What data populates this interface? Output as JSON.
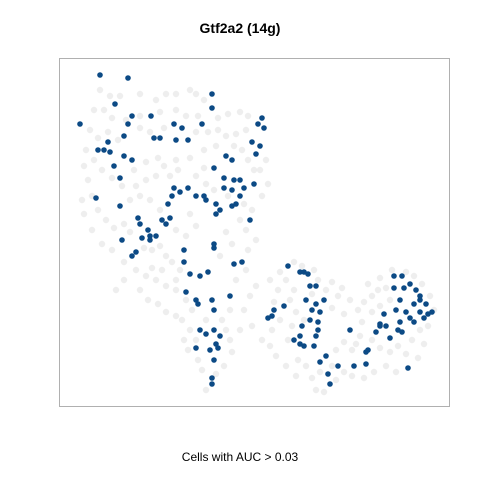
{
  "title": "Gtf2a2 (14g)",
  "caption": "Cells with AUC > 0.03",
  "colors": {
    "highlight": "#0c4a85",
    "background_cells": "#e8e8e8",
    "frame": "#b0b0b0"
  },
  "chart_data": {
    "type": "scatter",
    "title": "Gtf2a2 (14g)",
    "xlabel": "Cells with AUC > 0.03",
    "ylabel": "",
    "grid": false,
    "legend": "none",
    "series": [
      {
        "color": "#0c4a85",
        "points": [
          [
            100,
            75
          ],
          [
            128,
            78
          ],
          [
            80,
            124
          ],
          [
            115,
            104
          ],
          [
            132,
            116
          ],
          [
            128,
            124
          ],
          [
            151,
            116
          ],
          [
            174,
            124
          ],
          [
            182,
            128
          ],
          [
            202,
            124
          ],
          [
            212,
            94
          ],
          [
            212,
            108
          ],
          [
            188,
            140
          ],
          [
            258,
            124
          ],
          [
            262,
            118
          ],
          [
            264,
            128
          ],
          [
            252,
            142
          ],
          [
            260,
            146
          ],
          [
            226,
            156
          ],
          [
            232,
            160
          ],
          [
            214,
            168
          ],
          [
            224,
            178
          ],
          [
            224,
            188
          ],
          [
            234,
            180
          ],
          [
            240,
            180
          ],
          [
            254,
            184
          ],
          [
            240,
            196
          ],
          [
            236,
            204
          ],
          [
            232,
            206
          ],
          [
            216,
            204
          ],
          [
            220,
            210
          ],
          [
            216,
            214
          ],
          [
            206,
            200
          ],
          [
            204,
            196
          ],
          [
            196,
            196
          ],
          [
            188,
            188
          ],
          [
            174,
            188
          ],
          [
            172,
            196
          ],
          [
            168,
            204
          ],
          [
            170,
            218
          ],
          [
            166,
            224
          ],
          [
            162,
            220
          ],
          [
            156,
            236
          ],
          [
            150,
            236
          ],
          [
            142,
            238
          ],
          [
            140,
            224
          ],
          [
            138,
            218
          ],
          [
            148,
            230
          ],
          [
            122,
            240
          ],
          [
            132,
            256
          ],
          [
            136,
            252
          ],
          [
            120,
            206
          ],
          [
            120,
            178
          ],
          [
            114,
            166
          ],
          [
            110,
            152
          ],
          [
            124,
            156
          ],
          [
            132,
            160
          ],
          [
            104,
            150
          ],
          [
            98,
            150
          ],
          [
            154,
            138
          ],
          [
            160,
            138
          ],
          [
            124,
            136
          ],
          [
            108,
            142
          ],
          [
            96,
            198
          ],
          [
            184,
            250
          ],
          [
            184,
            262
          ],
          [
            190,
            274
          ],
          [
            186,
            292
          ],
          [
            214,
            244
          ],
          [
            214,
            248
          ],
          [
            200,
            276
          ],
          [
            208,
            272
          ],
          [
            234,
            264
          ],
          [
            242,
            262
          ],
          [
            198,
            304
          ],
          [
            212,
            300
          ],
          [
            214,
            310
          ],
          [
            206,
            334
          ],
          [
            214,
            330
          ],
          [
            216,
            344
          ],
          [
            218,
            348
          ],
          [
            210,
            350
          ],
          [
            220,
            336
          ],
          [
            196,
            348
          ],
          [
            214,
            360
          ],
          [
            212,
            378
          ],
          [
            212,
            384
          ],
          [
            268,
            318
          ],
          [
            274,
            310
          ],
          [
            284,
            306
          ],
          [
            288,
            266
          ],
          [
            300,
            272
          ],
          [
            304,
            272
          ],
          [
            308,
            274
          ],
          [
            310,
            286
          ],
          [
            316,
            286
          ],
          [
            306,
            300
          ],
          [
            316,
            304
          ],
          [
            312,
            310
          ],
          [
            320,
            312
          ],
          [
            324,
            300
          ],
          [
            318,
            322
          ],
          [
            316,
            336
          ],
          [
            314,
            346
          ],
          [
            302,
            326
          ],
          [
            300,
            336
          ],
          [
            294,
            340
          ],
          [
            300,
            344
          ],
          [
            304,
            346
          ],
          [
            326,
            356
          ],
          [
            320,
            362
          ],
          [
            328,
            374
          ],
          [
            330,
            384
          ],
          [
            350,
            330
          ],
          [
            366,
            352
          ],
          [
            366,
            364
          ],
          [
            338,
            366
          ],
          [
            354,
            366
          ],
          [
            376,
            332
          ],
          [
            380,
            326
          ],
          [
            384,
            314
          ],
          [
            394,
            276
          ],
          [
            402,
            276
          ],
          [
            394,
            288
          ],
          [
            400,
            300
          ],
          [
            404,
            288
          ],
          [
            410,
            284
          ],
          [
            416,
            290
          ],
          [
            396,
            310
          ],
          [
            406,
            312
          ],
          [
            410,
            318
          ],
          [
            414,
            322
          ],
          [
            420,
            312
          ],
          [
            420,
            300
          ],
          [
            426,
            304
          ],
          [
            424,
            318
          ],
          [
            432,
            312
          ],
          [
            400,
            322
          ],
          [
            402,
            332
          ],
          [
            390,
            338
          ],
          [
            408,
            368
          ],
          [
            380,
            324
          ],
          [
            318,
            330
          ],
          [
            272,
            316
          ],
          [
            230,
            296
          ],
          [
            244,
            188
          ],
          [
            150,
            240
          ],
          [
            180,
            192
          ],
          [
            250,
            220
          ],
          [
            196,
            300
          ],
          [
            200,
            330
          ],
          [
            310,
            320
          ],
          [
            232,
            190
          ],
          [
            176,
            140
          ],
          [
            256,
            154
          ],
          [
            368,
            350
          ],
          [
            414,
            304
          ],
          [
            420,
            296
          ],
          [
            428,
            314
          ],
          [
            386,
            326
          ],
          [
            398,
            330
          ]
        ]
      }
    ],
    "background_points": [
      [
        100,
        90
      ],
      [
        110,
        96
      ],
      [
        120,
        96
      ],
      [
        140,
        94
      ],
      [
        156,
        100
      ],
      [
        166,
        94
      ],
      [
        176,
        94
      ],
      [
        190,
        90
      ],
      [
        196,
        94
      ],
      [
        204,
        100
      ],
      [
        94,
        110
      ],
      [
        104,
        110
      ],
      [
        112,
        118
      ],
      [
        126,
        120
      ],
      [
        140,
        116
      ],
      [
        160,
        112
      ],
      [
        176,
        110
      ],
      [
        186,
        116
      ],
      [
        198,
        116
      ],
      [
        218,
        118
      ],
      [
        228,
        114
      ],
      [
        240,
        112
      ],
      [
        248,
        116
      ],
      [
        90,
        130
      ],
      [
        98,
        138
      ],
      [
        108,
        132
      ],
      [
        140,
        128
      ],
      [
        150,
        132
      ],
      [
        164,
        128
      ],
      [
        196,
        132
      ],
      [
        208,
        132
      ],
      [
        218,
        130
      ],
      [
        226,
        136
      ],
      [
        236,
        134
      ],
      [
        246,
        130
      ],
      [
        94,
        160
      ],
      [
        102,
        170
      ],
      [
        112,
        178
      ],
      [
        122,
        186
      ],
      [
        134,
        170
      ],
      [
        146,
        162
      ],
      [
        158,
        158
      ],
      [
        164,
        166
      ],
      [
        176,
        160
      ],
      [
        190,
        158
      ],
      [
        204,
        150
      ],
      [
        216,
        146
      ],
      [
        234,
        146
      ],
      [
        242,
        150
      ],
      [
        248,
        160
      ],
      [
        254,
        170
      ],
      [
        88,
        180
      ],
      [
        92,
        196
      ],
      [
        98,
        210
      ],
      [
        106,
        220
      ],
      [
        114,
        228
      ],
      [
        124,
        224
      ],
      [
        130,
        232
      ],
      [
        144,
        248
      ],
      [
        152,
        250
      ],
      [
        160,
        246
      ],
      [
        166,
        256
      ],
      [
        172,
        262
      ],
      [
        180,
        270
      ],
      [
        92,
        230
      ],
      [
        102,
        244
      ],
      [
        112,
        250
      ],
      [
        124,
        262
      ],
      [
        136,
        270
      ],
      [
        146,
        276
      ],
      [
        156,
        280
      ],
      [
        166,
        286
      ],
      [
        176,
        290
      ],
      [
        186,
        300
      ],
      [
        192,
        310
      ],
      [
        182,
        320
      ],
      [
        190,
        330
      ],
      [
        196,
        340
      ],
      [
        198,
        360
      ],
      [
        202,
        370
      ],
      [
        206,
        390
      ],
      [
        222,
        320
      ],
      [
        226,
        330
      ],
      [
        230,
        310
      ],
      [
        236,
        280
      ],
      [
        246,
        270
      ],
      [
        248,
        250
      ],
      [
        256,
        240
      ],
      [
        246,
        230
      ],
      [
        252,
        210
      ],
      [
        262,
        196
      ],
      [
        268,
        184
      ],
      [
        260,
        170
      ],
      [
        266,
        160
      ],
      [
        226,
        232
      ],
      [
        232,
        244
      ],
      [
        220,
        256
      ],
      [
        196,
        226
      ],
      [
        190,
        214
      ],
      [
        186,
        236
      ],
      [
        176,
        230
      ],
      [
        160,
        210
      ],
      [
        150,
        200
      ],
      [
        140,
        196
      ],
      [
        130,
        200
      ],
      [
        136,
        186
      ],
      [
        146,
        180
      ],
      [
        156,
        176
      ],
      [
        170,
        176
      ],
      [
        178,
        170
      ],
      [
        196,
        176
      ],
      [
        204,
        168
      ],
      [
        206,
        184
      ],
      [
        214,
        190
      ],
      [
        228,
        196
      ],
      [
        244,
        204
      ],
      [
        240,
        220
      ],
      [
        270,
        280
      ],
      [
        278,
        290
      ],
      [
        286,
        280
      ],
      [
        294,
        290
      ],
      [
        290,
        300
      ],
      [
        280,
        320
      ],
      [
        272,
        330
      ],
      [
        262,
        340
      ],
      [
        252,
        326
      ],
      [
        244,
        310
      ],
      [
        250,
        296
      ],
      [
        256,
        286
      ],
      [
        296,
        312
      ],
      [
        304,
        320
      ],
      [
        292,
        326
      ],
      [
        288,
        340
      ],
      [
        298,
        360
      ],
      [
        306,
        366
      ],
      [
        312,
        378
      ],
      [
        320,
        372
      ],
      [
        332,
        366
      ],
      [
        336,
        350
      ],
      [
        344,
        342
      ],
      [
        352,
        350
      ],
      [
        356,
        344
      ],
      [
        360,
        336
      ],
      [
        362,
        322
      ],
      [
        344,
        314
      ],
      [
        332,
        308
      ],
      [
        338,
        296
      ],
      [
        326,
        290
      ],
      [
        332,
        282
      ],
      [
        342,
        288
      ],
      [
        350,
        300
      ],
      [
        358,
        310
      ],
      [
        364,
        302
      ],
      [
        372,
        296
      ],
      [
        378,
        290
      ],
      [
        386,
        288
      ],
      [
        390,
        300
      ],
      [
        380,
        306
      ],
      [
        372,
        312
      ],
      [
        372,
        340
      ],
      [
        380,
        348
      ],
      [
        390,
        352
      ],
      [
        398,
        346
      ],
      [
        406,
        354
      ],
      [
        412,
        340
      ],
      [
        420,
        330
      ],
      [
        428,
        326
      ],
      [
        434,
        310
      ],
      [
        430,
        296
      ],
      [
        422,
        284
      ],
      [
        414,
        276
      ],
      [
        406,
        272
      ],
      [
        392,
        270
      ],
      [
        380,
        278
      ],
      [
        368,
        284
      ],
      [
        312,
        294
      ],
      [
        318,
        280
      ],
      [
        314,
        270
      ],
      [
        302,
        266
      ],
      [
        294,
        262
      ],
      [
        280,
        272
      ],
      [
        274,
        302
      ],
      [
        270,
        346
      ],
      [
        276,
        356
      ],
      [
        286,
        366
      ],
      [
        296,
        376
      ],
      [
        316,
        390
      ],
      [
        324,
        392
      ],
      [
        336,
        380
      ],
      [
        344,
        372
      ],
      [
        352,
        376
      ],
      [
        364,
        378
      ],
      [
        374,
        372
      ],
      [
        386,
        366
      ],
      [
        396,
        372
      ],
      [
        418,
        358
      ],
      [
        424,
        344
      ],
      [
        152,
        268
      ],
      [
        162,
        270
      ],
      [
        176,
        280
      ],
      [
        140,
        290
      ],
      [
        148,
        300
      ],
      [
        158,
        304
      ],
      [
        166,
        312
      ],
      [
        176,
        316
      ],
      [
        184,
        340
      ],
      [
        188,
        350
      ],
      [
        206,
        320
      ],
      [
        230,
        340
      ],
      [
        240,
        330
      ],
      [
        232,
        352
      ],
      [
        224,
        366
      ],
      [
        216,
        374
      ],
      [
        118,
        140
      ],
      [
        86,
        150
      ],
      [
        84,
        166
      ],
      [
        82,
        200
      ],
      [
        84,
        214
      ],
      [
        116,
        290
      ],
      [
        124,
        280
      ]
    ]
  }
}
